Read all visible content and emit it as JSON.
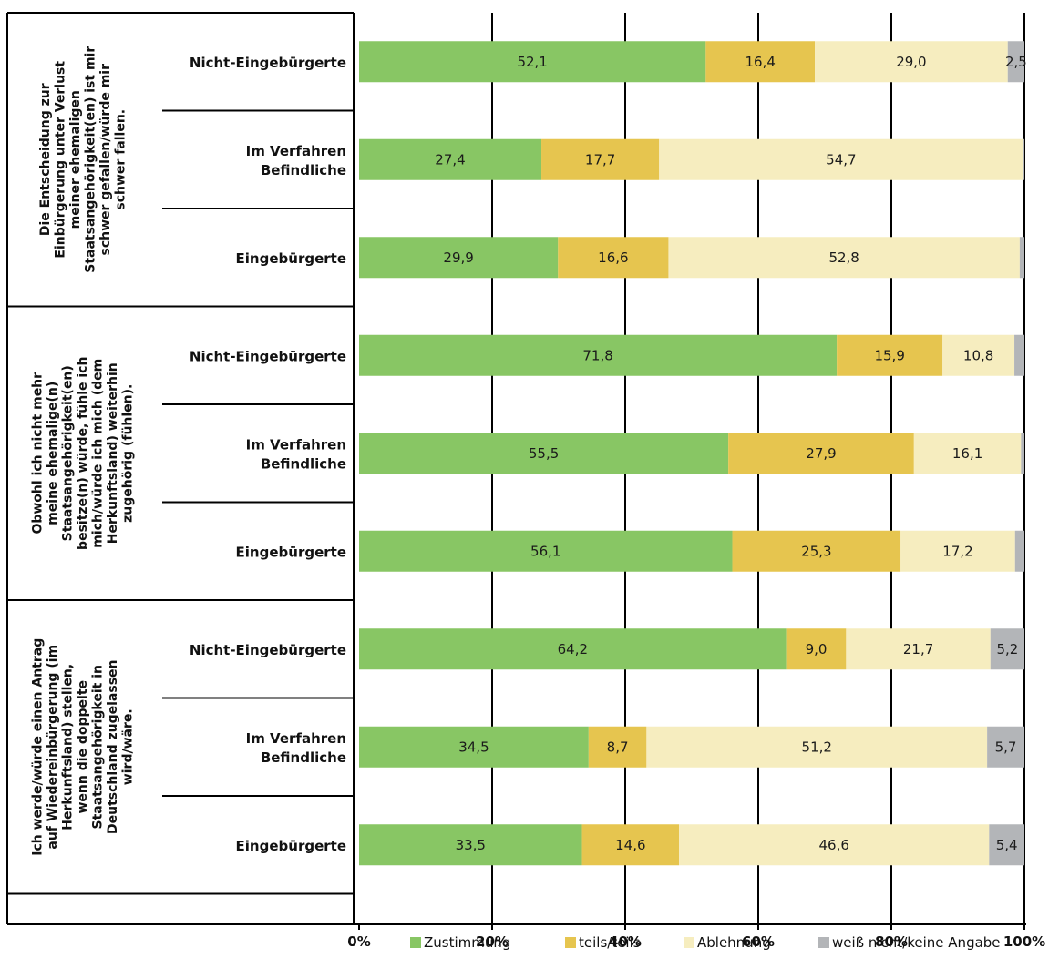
{
  "chart_data": {
    "type": "bar",
    "orientation": "horizontal",
    "stacked": true,
    "xlim": [
      0,
      100
    ],
    "xticks": [
      "0%",
      "20%",
      "40%",
      "60%",
      "80%",
      "100%"
    ],
    "colors": [
      "#88c664",
      "#e6c54f",
      "#f6edbf",
      "#b3b5b8"
    ],
    "legend": {
      "placement": "bottom-right",
      "entries": [
        "Zustimmung",
        "teils/teils",
        "Ablehnung",
        "weiß nicht/keine Angabe"
      ]
    },
    "blocks": [
      {
        "question": [
          "Die Entscheidung zur",
          "Einbürgerung unter Verlust",
          "meiner ehemaligen",
          "Staatsangehörigkeit(en) ist mir",
          "schwer gefallen/würde mir",
          "schwer fallen."
        ],
        "rows": [
          {
            "label": [
              "Nicht-Eingebürgerte"
            ],
            "values": [
              52.1,
              16.4,
              29.0,
              2.5
            ],
            "labels": [
              "52,1",
              "16,4",
              "29,0",
              "2,5"
            ]
          },
          {
            "label": [
              "Im Verfahren",
              "Befindliche"
            ],
            "values": [
              27.4,
              17.7,
              54.7,
              0.2
            ],
            "labels": [
              "27,4",
              "17,7",
              "54,7",
              ""
            ]
          },
          {
            "label": [
              "Eingebürgerte"
            ],
            "values": [
              29.9,
              16.6,
              52.8,
              0.7
            ],
            "labels": [
              "29,9",
              "16,6",
              "52,8",
              ""
            ]
          }
        ]
      },
      {
        "question": [
          "Obwohl ich nicht mehr",
          "meine ehemalige(n)",
          "Staatsangehörigkeit(en)",
          "besitze(n) würde, fühle ich",
          "mich/würde ich mich (dem",
          "Herkunftsland) weiterhin",
          "zugehörig (fühlen)."
        ],
        "rows": [
          {
            "label": [
              "Nicht-Eingebürgerte"
            ],
            "values": [
              71.8,
              15.9,
              10.8,
              1.5
            ],
            "labels": [
              "71,8",
              "15,9",
              "10,8",
              ""
            ]
          },
          {
            "label": [
              "Im Verfahren",
              "Befindliche"
            ],
            "values": [
              55.5,
              27.9,
              16.1,
              0.5
            ],
            "labels": [
              "55,5",
              "27,9",
              "16,1",
              ""
            ]
          },
          {
            "label": [
              "Eingebürgerte"
            ],
            "values": [
              56.1,
              25.3,
              17.2,
              1.4
            ],
            "labels": [
              "56,1",
              "25,3",
              "17,2",
              ""
            ]
          }
        ]
      },
      {
        "question": [
          "Ich werde/würde einen Antrag",
          "auf Wiedereinbürgerung (im",
          "Herkunftsland) stellen,",
          "wenn die doppelte",
          "Staatsangehörigkeit in",
          "Deutschland zugelassen",
          "wird/wäre."
        ],
        "rows": [
          {
            "label": [
              "Nicht-Eingebürgerte"
            ],
            "values": [
              64.2,
              9.0,
              21.7,
              5.2
            ],
            "labels": [
              "64,2",
              "9,0",
              "21,7",
              "5,2"
            ]
          },
          {
            "label": [
              "Im Verfahren",
              "Befindliche"
            ],
            "values": [
              34.5,
              8.7,
              51.2,
              5.7
            ],
            "labels": [
              "34,5",
              "8,7",
              "51,2",
              "5,7"
            ]
          },
          {
            "label": [
              "Eingebürgerte"
            ],
            "values": [
              33.5,
              14.6,
              46.6,
              5.4
            ],
            "labels": [
              "33,5",
              "14,6",
              "46,6",
              "5,4"
            ]
          }
        ]
      }
    ]
  }
}
